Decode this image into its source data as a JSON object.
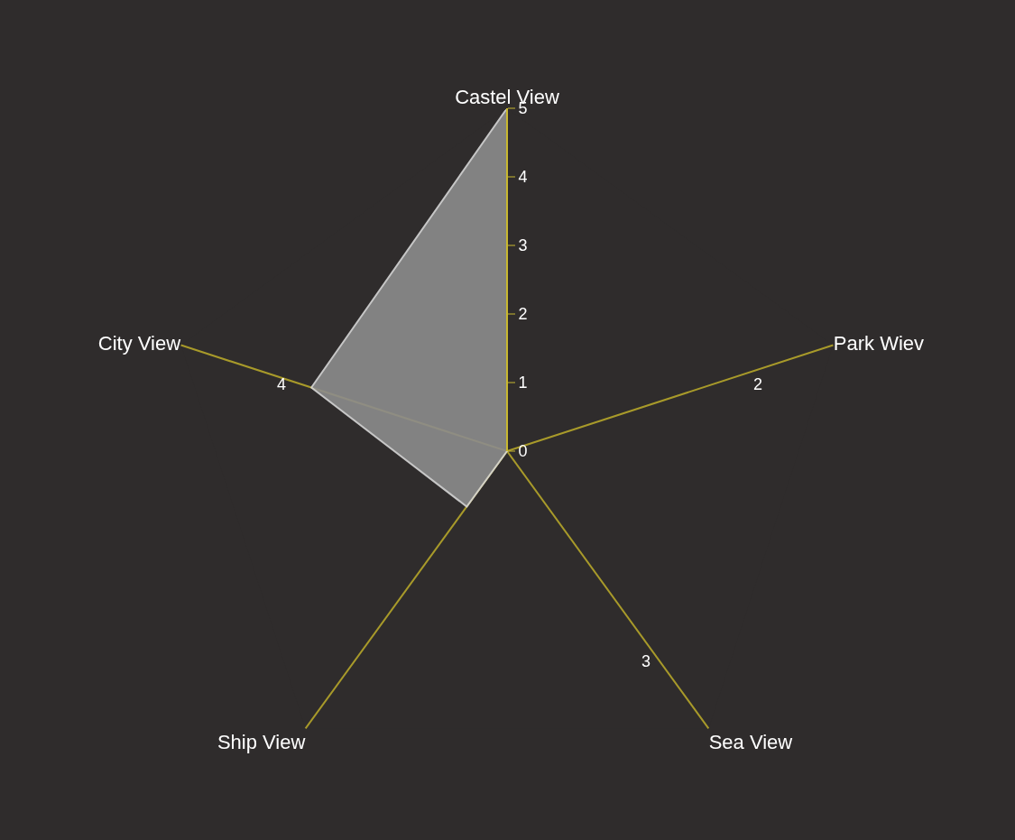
{
  "chart_data": {
    "type": "radar",
    "categories": [
      "Castel View",
      "Park Wiev",
      "Sea View",
      "Ship View",
      "City View"
    ],
    "series": [
      {
        "color": "#8c8c8c",
        "values": [
          5,
          0,
          0,
          1,
          3
        ]
      }
    ],
    "ylim": [
      0,
      5
    ],
    "yticks": [
      0,
      1,
      2,
      3,
      4,
      5
    ],
    "grid": false,
    "legend": false,
    "marker": "none",
    "annotations": [
      {
        "text": "2",
        "x": "Park Wiev"
      },
      {
        "text": "3",
        "x": "Sea View"
      },
      {
        "text": "4",
        "x": "City View"
      }
    ]
  }
}
